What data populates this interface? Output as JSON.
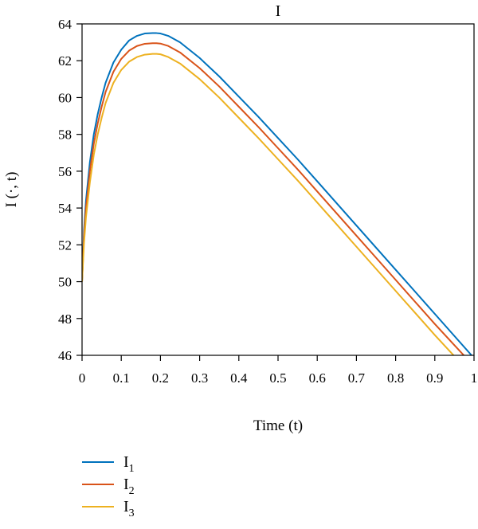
{
  "chart_data": {
    "type": "line",
    "title": "I",
    "xlabel": "Time (t)",
    "ylabel": "I (·, t)",
    "xlim": [
      0,
      1
    ],
    "ylim": [
      46,
      64
    ],
    "xticks": [
      0,
      0.1,
      0.2,
      0.3,
      0.4,
      0.5,
      0.6,
      0.7,
      0.8,
      0.9,
      1
    ],
    "xtick_labels": [
      "0",
      "0.1",
      "0.2",
      "0.3",
      "0.4",
      "0.5",
      "0.6",
      "0.7",
      "0.8",
      "0.9",
      "1"
    ],
    "yticks": [
      46,
      48,
      50,
      52,
      54,
      56,
      58,
      60,
      62,
      64
    ],
    "ytick_labels": [
      "46",
      "48",
      "50",
      "52",
      "54",
      "56",
      "58",
      "60",
      "62",
      "64"
    ],
    "grid": false,
    "legend_position": "bottom-left",
    "x": [
      0,
      0.005,
      0.01,
      0.02,
      0.03,
      0.04,
      0.05,
      0.06,
      0.08,
      0.1,
      0.12,
      0.14,
      0.16,
      0.18,
      0.19,
      0.2,
      0.22,
      0.25,
      0.3,
      0.35,
      0.4,
      0.45,
      0.5,
      0.55,
      0.6,
      0.65,
      0.7,
      0.75,
      0.8,
      0.85,
      0.9,
      0.95,
      1
    ],
    "series": [
      {
        "name": "I",
        "sub": "1",
        "color": "#0072BD",
        "values": [
          50.0,
          52.8,
          54.4,
          56.5,
          58.0,
          59.1,
          60.0,
          60.8,
          61.9,
          62.6,
          63.1,
          63.35,
          63.48,
          63.5,
          63.5,
          63.48,
          63.35,
          63.0,
          62.15,
          61.15,
          60.05,
          58.95,
          57.8,
          56.65,
          55.45,
          54.25,
          53.05,
          51.85,
          50.65,
          49.45,
          48.25,
          47.05,
          45.85
        ]
      },
      {
        "name": "I",
        "sub": "2",
        "color": "#D95319",
        "values": [
          50.0,
          52.5,
          54.0,
          56.0,
          57.5,
          58.6,
          59.5,
          60.3,
          61.4,
          62.1,
          62.55,
          62.8,
          62.92,
          62.95,
          62.95,
          62.93,
          62.8,
          62.45,
          61.6,
          60.6,
          59.5,
          58.4,
          57.25,
          56.1,
          54.9,
          53.7,
          52.5,
          51.3,
          50.1,
          48.9,
          47.7,
          46.55,
          45.4
        ]
      },
      {
        "name": "I",
        "sub": "3",
        "color": "#EDB120",
        "values": [
          50.0,
          52.1,
          53.5,
          55.4,
          56.9,
          58.0,
          58.9,
          59.7,
          60.8,
          61.5,
          61.95,
          62.2,
          62.33,
          62.37,
          62.37,
          62.35,
          62.2,
          61.85,
          61.0,
          60.0,
          58.9,
          57.8,
          56.65,
          55.5,
          54.3,
          53.1,
          51.9,
          50.7,
          49.5,
          48.3,
          47.1,
          45.95,
          44.8
        ]
      }
    ]
  }
}
